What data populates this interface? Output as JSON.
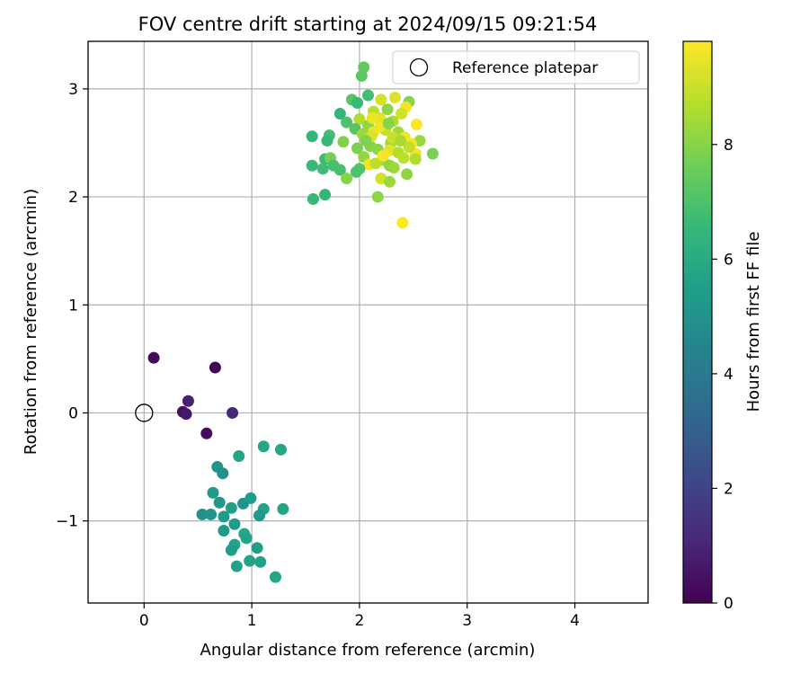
{
  "chart_data": {
    "type": "scatter",
    "title": "FOV centre drift starting at 2024/09/15 09:21:54",
    "xlabel": "Angular distance from reference (arcmin)",
    "ylabel": "Rotation from reference (arcmin)",
    "xlim": [
      -0.52,
      4.68
    ],
    "ylim": [
      -1.76,
      3.44
    ],
    "xticks": [
      0,
      1,
      2,
      3,
      4
    ],
    "yticks": [
      -1,
      0,
      1,
      2,
      3
    ],
    "grid": true,
    "legend": {
      "placement": "top-right",
      "label": "Reference platepar"
    },
    "reference_point": {
      "x": 0,
      "y": 0
    },
    "colorbar": {
      "label": "Hours from first FF file",
      "range": [
        0,
        9.8
      ],
      "ticks": [
        0,
        2,
        4,
        6,
        8
      ],
      "colormap": "viridis",
      "stops": [
        "#440154",
        "#482878",
        "#3e4989",
        "#31688e",
        "#26828e",
        "#1f9e89",
        "#35b779",
        "#6ece58",
        "#b5de2b",
        "#fde725"
      ]
    },
    "points": [
      {
        "x": 0.09,
        "y": 0.51,
        "t": 0.2
      },
      {
        "x": 0.66,
        "y": 0.42,
        "t": 0.1
      },
      {
        "x": 0.41,
        "y": 0.11,
        "t": 0.9
      },
      {
        "x": 0.36,
        "y": 0.01,
        "t": 0.4
      },
      {
        "x": 0.39,
        "y": -0.01,
        "t": 0.6
      },
      {
        "x": 0.82,
        "y": 0.0,
        "t": 1.1
      },
      {
        "x": 0.58,
        "y": -0.19,
        "t": 0.3
      },
      {
        "x": 0.88,
        "y": -0.4,
        "t": 5.7
      },
      {
        "x": 1.11,
        "y": -0.31,
        "t": 5.8
      },
      {
        "x": 1.27,
        "y": -0.34,
        "t": 5.8
      },
      {
        "x": 0.68,
        "y": -0.5,
        "t": 5.1
      },
      {
        "x": 0.73,
        "y": -0.56,
        "t": 4.9
      },
      {
        "x": 0.64,
        "y": -0.74,
        "t": 5.3
      },
      {
        "x": 0.7,
        "y": -0.83,
        "t": 5.2
      },
      {
        "x": 0.92,
        "y": -0.84,
        "t": 5.0
      },
      {
        "x": 0.99,
        "y": -0.79,
        "t": 5.4
      },
      {
        "x": 0.81,
        "y": -0.88,
        "t": 5.5
      },
      {
        "x": 1.11,
        "y": -0.89,
        "t": 5.6
      },
      {
        "x": 1.29,
        "y": -0.89,
        "t": 5.7
      },
      {
        "x": 0.54,
        "y": -0.94,
        "t": 4.9
      },
      {
        "x": 0.62,
        "y": -0.94,
        "t": 5.1
      },
      {
        "x": 0.74,
        "y": -0.96,
        "t": 5.3
      },
      {
        "x": 1.07,
        "y": -0.95,
        "t": 5.2
      },
      {
        "x": 0.84,
        "y": -1.03,
        "t": 5.4
      },
      {
        "x": 0.74,
        "y": -1.09,
        "t": 5.3
      },
      {
        "x": 0.93,
        "y": -1.12,
        "t": 5.9
      },
      {
        "x": 0.95,
        "y": -1.16,
        "t": 5.7
      },
      {
        "x": 0.84,
        "y": -1.22,
        "t": 5.6
      },
      {
        "x": 0.81,
        "y": -1.27,
        "t": 5.5
      },
      {
        "x": 1.05,
        "y": -1.25,
        "t": 5.5
      },
      {
        "x": 0.98,
        "y": -1.37,
        "t": 5.6
      },
      {
        "x": 1.08,
        "y": -1.38,
        "t": 5.6
      },
      {
        "x": 0.86,
        "y": -1.42,
        "t": 5.6
      },
      {
        "x": 1.22,
        "y": -1.52,
        "t": 5.8
      },
      {
        "x": 2.04,
        "y": 3.2,
        "t": 7.4
      },
      {
        "x": 2.02,
        "y": 3.12,
        "t": 7.3
      },
      {
        "x": 1.93,
        "y": 2.9,
        "t": 7.2
      },
      {
        "x": 2.08,
        "y": 2.94,
        "t": 6.8
      },
      {
        "x": 1.98,
        "y": 2.87,
        "t": 6.6
      },
      {
        "x": 2.46,
        "y": 2.88,
        "t": 8.0
      },
      {
        "x": 2.33,
        "y": 2.92,
        "t": 9.3
      },
      {
        "x": 2.2,
        "y": 2.9,
        "t": 9.2
      },
      {
        "x": 1.82,
        "y": 2.77,
        "t": 6.5
      },
      {
        "x": 2.13,
        "y": 2.79,
        "t": 8.8
      },
      {
        "x": 2.26,
        "y": 2.81,
        "t": 8.1
      },
      {
        "x": 2.43,
        "y": 2.83,
        "t": 9.6
      },
      {
        "x": 2.39,
        "y": 2.77,
        "t": 9.1
      },
      {
        "x": 2.0,
        "y": 2.72,
        "t": 8.7
      },
      {
        "x": 1.88,
        "y": 2.69,
        "t": 7.0
      },
      {
        "x": 2.19,
        "y": 2.73,
        "t": 9.4
      },
      {
        "x": 2.31,
        "y": 2.7,
        "t": 8.6
      },
      {
        "x": 2.53,
        "y": 2.67,
        "t": 9.8
      },
      {
        "x": 2.08,
        "y": 2.66,
        "t": 8.2
      },
      {
        "x": 1.96,
        "y": 2.63,
        "t": 7.2
      },
      {
        "x": 2.24,
        "y": 2.62,
        "t": 8.9
      },
      {
        "x": 2.36,
        "y": 2.6,
        "t": 8.4
      },
      {
        "x": 2.13,
        "y": 2.6,
        "t": 9.5
      },
      {
        "x": 2.03,
        "y": 2.58,
        "t": 8.3
      },
      {
        "x": 1.56,
        "y": 2.56,
        "t": 6.5
      },
      {
        "x": 1.72,
        "y": 2.57,
        "t": 6.8
      },
      {
        "x": 1.7,
        "y": 2.52,
        "t": 6.6
      },
      {
        "x": 1.85,
        "y": 2.51,
        "t": 7.9
      },
      {
        "x": 2.42,
        "y": 2.55,
        "t": 9.6
      },
      {
        "x": 2.56,
        "y": 2.52,
        "t": 8.3
      },
      {
        "x": 2.29,
        "y": 2.5,
        "t": 8.5
      },
      {
        "x": 2.48,
        "y": 2.49,
        "t": 9.7
      },
      {
        "x": 2.1,
        "y": 2.47,
        "t": 8.0
      },
      {
        "x": 1.98,
        "y": 2.45,
        "t": 7.8
      },
      {
        "x": 2.17,
        "y": 2.44,
        "t": 8.1
      },
      {
        "x": 2.28,
        "y": 2.43,
        "t": 9.4
      },
      {
        "x": 2.36,
        "y": 2.41,
        "t": 8.7
      },
      {
        "x": 2.52,
        "y": 2.4,
        "t": 9.6
      },
      {
        "x": 2.68,
        "y": 2.4,
        "t": 7.8
      },
      {
        "x": 1.68,
        "y": 2.35,
        "t": 6.7
      },
      {
        "x": 1.73,
        "y": 2.36,
        "t": 7.7
      },
      {
        "x": 2.04,
        "y": 2.37,
        "t": 8.2
      },
      {
        "x": 2.22,
        "y": 2.34,
        "t": 8.5
      },
      {
        "x": 2.41,
        "y": 2.36,
        "t": 8.8
      },
      {
        "x": 2.52,
        "y": 2.35,
        "t": 8.6
      },
      {
        "x": 1.56,
        "y": 2.29,
        "t": 6.6
      },
      {
        "x": 1.76,
        "y": 2.29,
        "t": 6.9
      },
      {
        "x": 2.09,
        "y": 2.3,
        "t": 9.6
      },
      {
        "x": 2.15,
        "y": 2.31,
        "t": 8.8
      },
      {
        "x": 2.28,
        "y": 2.29,
        "t": 8.1
      },
      {
        "x": 1.66,
        "y": 2.26,
        "t": 6.7
      },
      {
        "x": 1.82,
        "y": 2.25,
        "t": 6.9
      },
      {
        "x": 2.0,
        "y": 2.26,
        "t": 7.1
      },
      {
        "x": 2.32,
        "y": 2.27,
        "t": 8.3
      },
      {
        "x": 1.97,
        "y": 2.23,
        "t": 7.0
      },
      {
        "x": 2.44,
        "y": 2.21,
        "t": 8.1
      },
      {
        "x": 1.88,
        "y": 2.17,
        "t": 8.0
      },
      {
        "x": 2.2,
        "y": 2.17,
        "t": 9.1
      },
      {
        "x": 2.28,
        "y": 2.14,
        "t": 8.3
      },
      {
        "x": 1.68,
        "y": 2.02,
        "t": 6.5
      },
      {
        "x": 1.57,
        "y": 1.98,
        "t": 6.6
      },
      {
        "x": 2.17,
        "y": 2.0,
        "t": 8.1
      },
      {
        "x": 2.4,
        "y": 1.76,
        "t": 9.8
      },
      {
        "x": 2.12,
        "y": 2.73,
        "t": 9.5
      },
      {
        "x": 2.46,
        "y": 2.46,
        "t": 8.9
      },
      {
        "x": 2.31,
        "y": 2.55,
        "t": 9.0
      },
      {
        "x": 2.11,
        "y": 2.56,
        "t": 9.3
      },
      {
        "x": 2.19,
        "y": 2.65,
        "t": 9.6
      },
      {
        "x": 2.27,
        "y": 2.68,
        "t": 8.0
      },
      {
        "x": 2.06,
        "y": 2.52,
        "t": 7.9
      },
      {
        "x": 2.22,
        "y": 2.38,
        "t": 9.7
      },
      {
        "x": 2.38,
        "y": 2.52,
        "t": 8.5
      }
    ]
  }
}
